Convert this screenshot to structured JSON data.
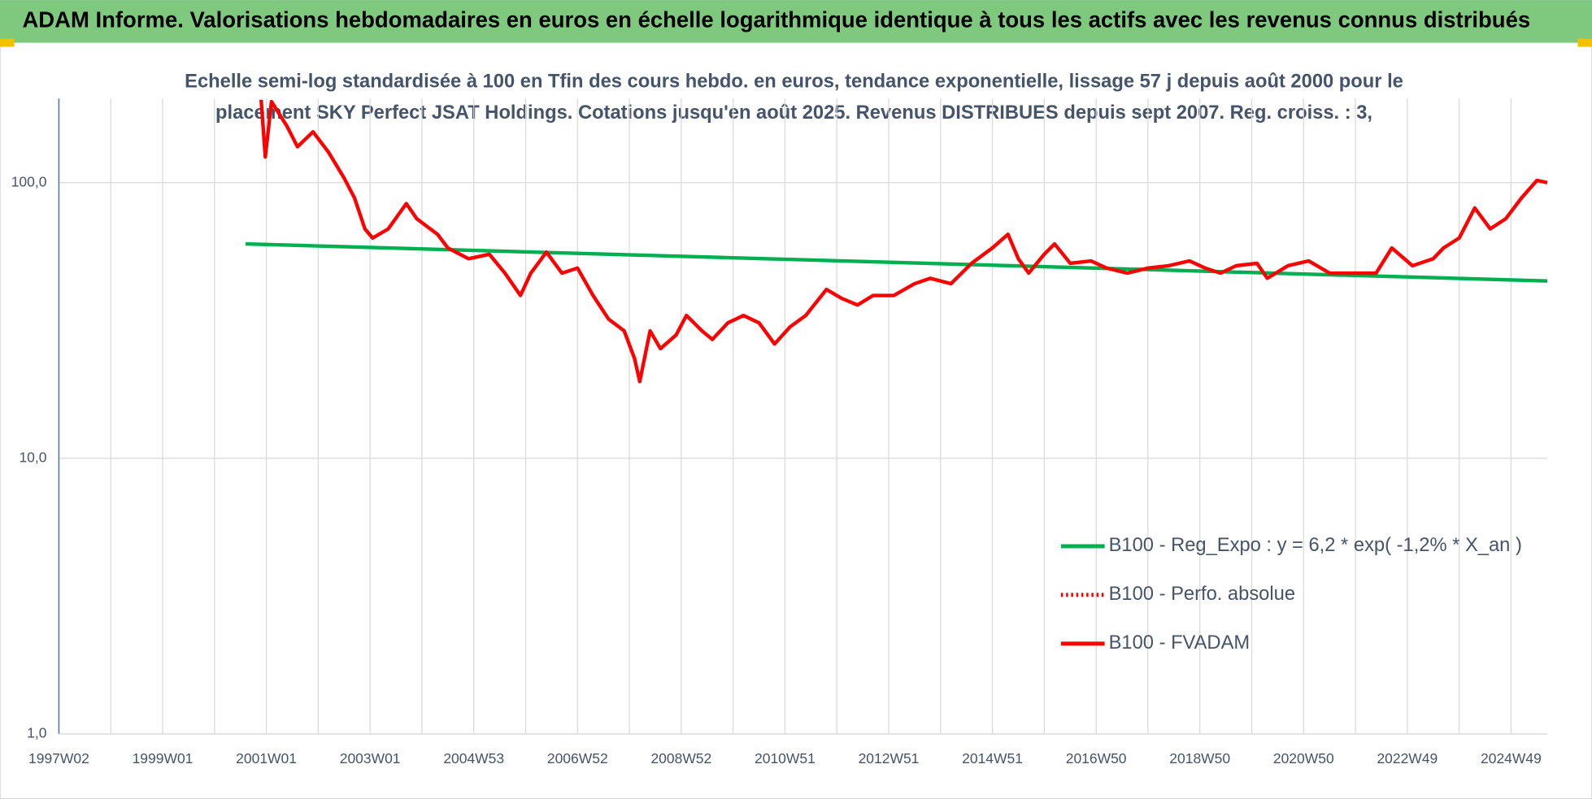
{
  "chart_data": {
    "type": "line",
    "title": "ADAM Informe. Valorisations hebdomadaires en euros en échelle logarithmique identique à tous les actifs avec les revenus connus distribués",
    "subtitle": [
      "Echelle semi-log standardisée à 100 en Tfin des cours hebdo. en euros, tendance exponentielle, lissage 57 j depuis août 2000 pour le",
      "placement SKY Perfect JSAT Holdings. Cotations jusqu'en août 2025.  Revenus DISTRIBUES depuis sept 2007. Reg. croiss. : 3,"
    ],
    "log_scale": true,
    "grid": true,
    "legend": "lower right",
    "xlim": [
      1997.0,
      2025.7
    ],
    "xticks": [
      {
        "value": 1997.0,
        "label": "1997W02"
      },
      {
        "value": 1999.0,
        "label": "1999W01"
      },
      {
        "value": 2001.0,
        "label": "2001W01"
      },
      {
        "value": 2003.0,
        "label": "2003W01"
      },
      {
        "value": 2005.0,
        "label": "2004W53"
      },
      {
        "value": 2007.0,
        "label": "2006W52"
      },
      {
        "value": 2009.0,
        "label": "2008W52"
      },
      {
        "value": 2011.0,
        "label": "2010W51"
      },
      {
        "value": 2013.0,
        "label": "2012W51"
      },
      {
        "value": 2015.0,
        "label": "2014W51"
      },
      {
        "value": 2017.0,
        "label": "2016W50"
      },
      {
        "value": 2019.0,
        "label": "2018W50"
      },
      {
        "value": 2021.0,
        "label": "2020W50"
      },
      {
        "value": 2023.0,
        "label": "2022W49"
      },
      {
        "value": 2025.0,
        "label": "2024W49"
      }
    ],
    "ylim": [
      1,
      202
    ],
    "yticks": [
      {
        "value": 1,
        "label": "1,0"
      },
      {
        "value": 10,
        "label": "10,0"
      },
      {
        "value": 100,
        "label": "100,0"
      }
    ],
    "series": [
      {
        "name": "B100 - Reg_Expo : y = 6,2 * exp( -1,2% *  X_an )",
        "color": "#00b050",
        "dash": "solid",
        "x": [
          2000.6,
          2025.7
        ],
        "values": [
          60,
          44
        ]
      },
      {
        "name": "B100 - Perfo. absolue",
        "color": "#ff0000",
        "dash": "dotted",
        "x": [],
        "values": []
      },
      {
        "name": "B100 - FVADAM",
        "color": "#ff0000",
        "dash": "solid",
        "x": [
          2000.9,
          2000.98,
          2001.1,
          2001.4,
          2001.6,
          2001.9,
          2002.2,
          2002.5,
          2002.7,
          2002.9,
          2003.05,
          2003.35,
          2003.7,
          2003.9,
          2004.3,
          2004.5,
          2004.9,
          2005.3,
          2005.6,
          2005.9,
          2006.1,
          2006.4,
          2006.7,
          2007.0,
          2007.3,
          2007.6,
          2007.9,
          2008.1,
          2008.2,
          2008.4,
          2008.6,
          2008.9,
          2009.1,
          2009.4,
          2009.6,
          2009.9,
          2010.2,
          2010.5,
          2010.8,
          2011.1,
          2011.4,
          2011.8,
          2012.1,
          2012.4,
          2012.7,
          2013.1,
          2013.5,
          2013.8,
          2014.2,
          2014.6,
          2015.0,
          2015.3,
          2015.5,
          2015.7,
          2016.0,
          2016.2,
          2016.5,
          2016.9,
          2017.2,
          2017.6,
          2018.0,
          2018.4,
          2018.8,
          2019.1,
          2019.4,
          2019.7,
          2020.1,
          2020.3,
          2020.7,
          2021.1,
          2021.5,
          2021.9,
          2022.4,
          2022.7,
          2023.1,
          2023.5,
          2023.7,
          2024.0,
          2024.3,
          2024.6,
          2024.9,
          2025.2,
          2025.5,
          2025.7
        ],
        "values": [
          200,
          124,
          197,
          160,
          135,
          153,
          129,
          104,
          88,
          68,
          63,
          68,
          84,
          74,
          65,
          58,
          53,
          55,
          47,
          39,
          47,
          56,
          47,
          49,
          39,
          32,
          29,
          23,
          19,
          29,
          25,
          28,
          33,
          29,
          27,
          31,
          33,
          31,
          26,
          30,
          33,
          41,
          38,
          36,
          39,
          39,
          43,
          45,
          43,
          51,
          58,
          65,
          53,
          47,
          55,
          60,
          51,
          52,
          49,
          47,
          49,
          50,
          52,
          49,
          47,
          50,
          51,
          45,
          50,
          52,
          47,
          47,
          47,
          58,
          50,
          53,
          58,
          63,
          81,
          68,
          74,
          88,
          102,
          100
        ]
      }
    ]
  }
}
